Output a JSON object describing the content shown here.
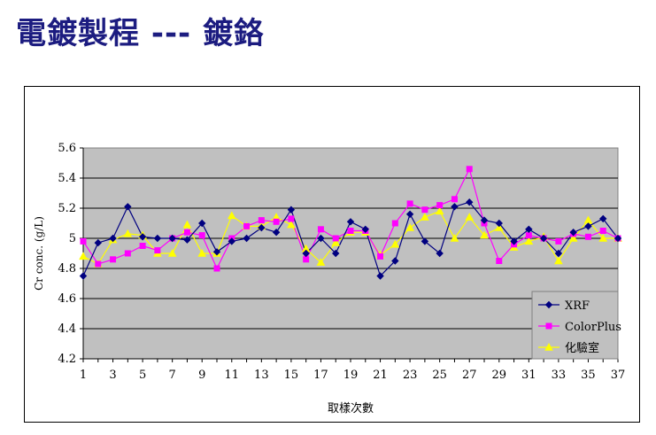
{
  "page": {
    "title": "電鍍製程 --- 鍍鉻"
  },
  "chart_data": {
    "type": "line",
    "title": "",
    "xlabel": "取樣次數",
    "ylabel": "Cr conc. (g/L)",
    "xlim": [
      1,
      37
    ],
    "ylim": [
      4.2,
      5.6
    ],
    "x_ticks": [
      1,
      3,
      5,
      7,
      9,
      11,
      13,
      15,
      17,
      19,
      21,
      23,
      25,
      27,
      29,
      31,
      33,
      35,
      37
    ],
    "y_ticks": [
      "4.2",
      "4.4",
      "4.6",
      "4.8",
      "5",
      "5.2",
      "5.4",
      "5.6"
    ],
    "grid": "horizontal",
    "legend_position": "bottom-right",
    "x": [
      1,
      2,
      3,
      4,
      5,
      6,
      7,
      8,
      9,
      10,
      11,
      12,
      13,
      14,
      15,
      16,
      17,
      18,
      19,
      20,
      21,
      22,
      23,
      24,
      25,
      26,
      27,
      28,
      29,
      30,
      31,
      32,
      33,
      34,
      35,
      36,
      37
    ],
    "series": [
      {
        "name": "XRF",
        "color": "#000080",
        "marker": "diamond",
        "values": [
          4.75,
          4.97,
          5.0,
          5.21,
          5.01,
          5.0,
          5.0,
          4.99,
          5.1,
          4.91,
          4.98,
          5.0,
          5.07,
          5.04,
          5.19,
          4.9,
          5.0,
          4.9,
          5.11,
          5.06,
          4.75,
          4.85,
          5.16,
          4.98,
          4.9,
          5.21,
          5.24,
          5.12,
          5.1,
          4.98,
          5.06,
          5.0,
          4.9,
          5.04,
          5.08,
          5.13,
          5.0
        ]
      },
      {
        "name": "ColorPlus",
        "color": "#ff00ff",
        "marker": "square",
        "values": [
          4.98,
          4.83,
          4.86,
          4.9,
          4.95,
          4.92,
          5.0,
          5.04,
          5.02,
          4.8,
          5.0,
          5.08,
          5.12,
          5.11,
          5.13,
          4.86,
          5.06,
          5.0,
          5.05,
          5.05,
          4.88,
          5.1,
          5.23,
          5.19,
          5.22,
          5.26,
          5.46,
          5.1,
          4.85,
          4.96,
          5.02,
          5.0,
          4.98,
          5.03,
          5.01,
          5.05,
          5.0
        ]
      },
      {
        "name": "化驗室",
        "color": "#ffff00",
        "marker": "triangle",
        "values": [
          4.88,
          4.83,
          4.99,
          5.03,
          5.02,
          4.9,
          4.9,
          5.09,
          4.9,
          4.9,
          5.15,
          5.08,
          5.08,
          5.14,
          5.09,
          4.93,
          4.84,
          4.97,
          5.04,
          5.04,
          4.89,
          4.96,
          5.07,
          5.14,
          5.18,
          5.0,
          5.14,
          5.02,
          5.07,
          4.94,
          4.98,
          5.01,
          4.85,
          5.0,
          5.12,
          5.0,
          5.0
        ]
      }
    ]
  }
}
